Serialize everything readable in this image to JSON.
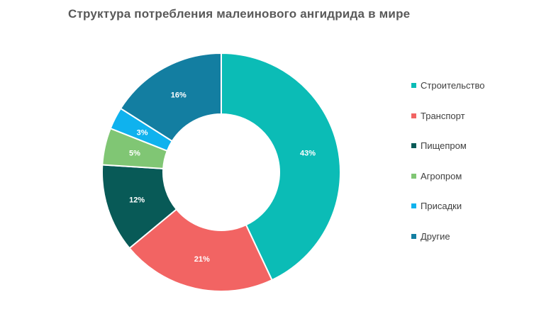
{
  "chart_data": {
    "type": "pie",
    "variant": "donut",
    "title": "Структура потребления малеинового ангидрида в мире",
    "categories": [
      "Строительство",
      "Транспорт",
      "Пищепром",
      "Агропром",
      "Присадки",
      "Другие"
    ],
    "values": [
      43,
      21,
      12,
      5,
      3,
      16
    ],
    "data_labels": [
      "43%",
      "21%",
      "12%",
      "5%",
      "3%",
      "16%"
    ],
    "colors": [
      "#0bbcb6",
      "#f26463",
      "#085a57",
      "#80c674",
      "#0fb2ee",
      "#137ea1"
    ],
    "legend_position": "right"
  }
}
